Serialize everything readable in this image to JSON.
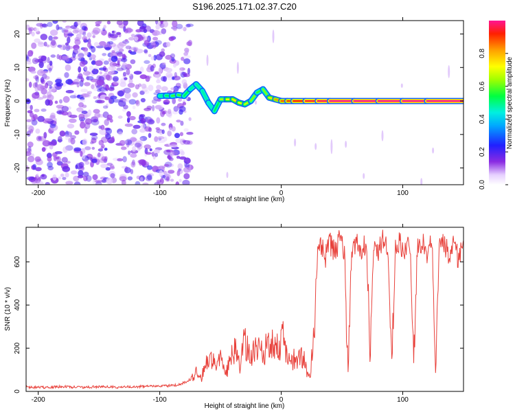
{
  "title": "S196.2025.171.02.37.C20",
  "colors": {
    "snr_line": "#e8403a",
    "track": "#e8403a"
  },
  "chart_data": [
    {
      "type": "heatmap",
      "xlabel": "Height of straight line (km)",
      "ylabel": "Frequency (Hz)",
      "xlim": [
        -210,
        150
      ],
      "ylim": [
        -25,
        24
      ],
      "xticks": [
        -200,
        -100,
        0,
        100
      ],
      "yticks": [
        -20,
        -10,
        0,
        10,
        20
      ],
      "colorbar": {
        "label": "Normalized spectral amplitude",
        "range": [
          0,
          1
        ],
        "ticks": [
          0.0,
          0.2,
          0.4,
          0.6,
          0.8
        ]
      },
      "signal_track": {
        "x": [
          -100,
          -95,
          -90,
          -85,
          -80,
          -75,
          -70,
          -65,
          -60,
          -55,
          -50,
          -45,
          -40,
          -35,
          -30,
          -25,
          -20,
          -15,
          -10,
          -5,
          0,
          5,
          10,
          20,
          30,
          40,
          60,
          80,
          100,
          120,
          150
        ],
        "y": [
          1.5,
          1.6,
          1.5,
          1.8,
          1.5,
          3.5,
          5,
          3,
          -0.5,
          -3,
          0.5,
          0.5,
          0.5,
          -0.5,
          -1,
          0,
          2.5,
          3.5,
          1,
          0.5,
          0,
          0,
          0,
          0,
          0,
          0,
          0,
          0,
          0,
          0,
          0
        ],
        "amplitude": [
          0.45,
          0.5,
          0.55,
          0.6,
          0.55,
          0.5,
          0.45,
          0.5,
          0.45,
          0.45,
          0.6,
          0.7,
          0.75,
          0.75,
          0.7,
          0.65,
          0.6,
          0.55,
          0.7,
          0.8,
          0.85,
          0.9,
          0.9,
          0.95,
          0.95,
          1,
          1,
          1,
          1,
          1,
          1
        ]
      }
    },
    {
      "type": "line",
      "xlabel": "Height of straight line (km)",
      "ylabel": "SNR (10 * v/v)",
      "xlim": [
        -210,
        150
      ],
      "ylim": [
        0,
        760
      ],
      "xticks": [
        -200,
        -100,
        0,
        100
      ],
      "yticks": [
        0,
        200,
        400,
        600
      ],
      "series": [
        {
          "x": [
            -210,
            -195,
            -180,
            -165,
            -150,
            -135,
            -120,
            -105,
            -95,
            -85,
            -78,
            -74,
            -70,
            -66,
            -62,
            -58,
            -54,
            -50,
            -46,
            -42,
            -38,
            -34,
            -30,
            -26,
            -22,
            -18,
            -14,
            -10,
            -6,
            -2,
            2,
            6,
            10,
            14,
            18,
            22,
            24,
            26,
            28,
            30,
            32,
            36,
            40,
            44,
            48,
            52,
            55,
            58,
            62,
            66,
            70,
            73,
            76,
            80,
            84,
            88,
            91,
            94,
            98,
            102,
            106,
            109,
            112,
            116,
            120,
            124,
            127,
            130,
            134,
            138,
            142,
            146,
            150
          ],
          "y": [
            20,
            18,
            22,
            19,
            21,
            20,
            22,
            24,
            25,
            30,
            45,
            60,
            85,
            60,
            120,
            170,
            100,
            150,
            70,
            140,
            200,
            120,
            240,
            160,
            190,
            250,
            180,
            240,
            220,
            200,
            260,
            130,
            150,
            140,
            160,
            80,
            60,
            240,
            420,
            640,
            700,
            620,
            690,
            640,
            700,
            650,
            110,
            660,
            700,
            650,
            690,
            130,
            680,
            650,
            700,
            640,
            120,
            660,
            690,
            640,
            690,
            120,
            650,
            700,
            640,
            690,
            110,
            650,
            690,
            640,
            690,
            600,
            700
          ]
        }
      ]
    }
  ]
}
